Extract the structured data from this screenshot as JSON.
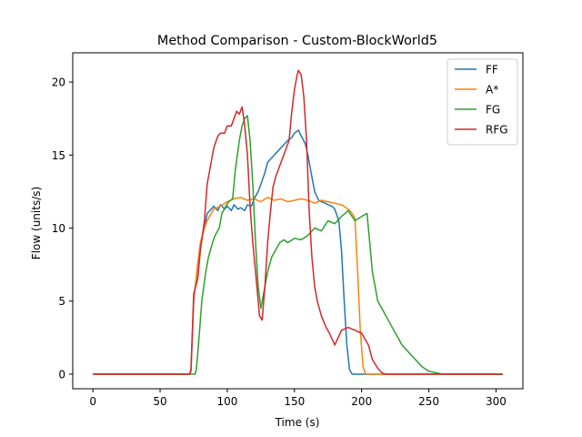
{
  "chart_data": {
    "type": "line",
    "title": "Method Comparison - Custom-BlockWorld5",
    "xlabel": "Time (s)",
    "ylabel": "Flow (units/s)",
    "xlim": [
      -15,
      320
    ],
    "ylim": [
      -1,
      22
    ],
    "xticks": [
      0,
      50,
      100,
      150,
      200,
      250,
      300
    ],
    "yticks": [
      0,
      5,
      10,
      15,
      20
    ],
    "grid": false,
    "legend_position": "top-right",
    "series": [
      {
        "name": "FF",
        "color": "#1f77b4",
        "x": [
          0,
          72,
          73,
          75,
          78,
          80,
          83,
          85,
          88,
          90,
          93,
          95,
          98,
          100,
          103,
          105,
          108,
          110,
          113,
          115,
          118,
          120,
          123,
          125,
          128,
          130,
          133,
          135,
          138,
          140,
          143,
          145,
          148,
          150,
          153,
          155,
          158,
          160,
          163,
          165,
          168,
          170,
          173,
          175,
          178,
          180,
          183,
          185,
          187,
          189,
          191,
          193,
          200,
          250,
          305
        ],
        "y": [
          0,
          0,
          0.2,
          5,
          7.5,
          9,
          10,
          11,
          11.3,
          11.5,
          11.2,
          11.6,
          11.3,
          11.5,
          11.2,
          11.6,
          11.3,
          11.4,
          11.2,
          11.6,
          11.5,
          12,
          12.5,
          13,
          13.8,
          14.5,
          14.8,
          15,
          15.3,
          15.5,
          15.8,
          16,
          16.2,
          16.5,
          16.7,
          16.3,
          15.8,
          15,
          13.5,
          12.5,
          11.9,
          11.8,
          11.7,
          11.6,
          11.5,
          11.3,
          10.5,
          8.5,
          5,
          2,
          0.3,
          0,
          0,
          0,
          0
        ]
      },
      {
        "name": "A*",
        "color": "#ff7f0e",
        "x": [
          0,
          72,
          73,
          75,
          78,
          80,
          83,
          85,
          88,
          90,
          95,
          100,
          105,
          110,
          115,
          120,
          125,
          130,
          135,
          140,
          145,
          150,
          155,
          160,
          165,
          170,
          175,
          180,
          185,
          190,
          193,
          195,
          197,
          199,
          201,
          203,
          210,
          250,
          305
        ],
        "y": [
          0,
          0,
          0.3,
          5,
          7.5,
          9,
          10,
          10.5,
          11,
          11.3,
          11.5,
          11.8,
          12,
          12.1,
          11.9,
          12,
          11.8,
          12.1,
          11.9,
          12,
          11.8,
          11.9,
          12,
          11.9,
          11.7,
          11.9,
          11.8,
          11.7,
          11.6,
          11.3,
          11,
          10.7,
          7,
          3,
          0.5,
          0,
          0,
          0,
          0
        ]
      },
      {
        "name": "FG",
        "color": "#2ca02c",
        "x": [
          0,
          76,
          77,
          79,
          81,
          84,
          86,
          89,
          91,
          94,
          96,
          99,
          101,
          104,
          106,
          109,
          111,
          113,
          115,
          117,
          119,
          121,
          123,
          125,
          127,
          130,
          133,
          136,
          139,
          142,
          145,
          150,
          155,
          160,
          165,
          170,
          175,
          180,
          185,
          190,
          195,
          200,
          204,
          206,
          208,
          210,
          212,
          215,
          218,
          221,
          224,
          227,
          230,
          235,
          240,
          245,
          250,
          255,
          260,
          305
        ],
        "y": [
          0,
          0,
          0.3,
          2.5,
          5,
          7,
          8,
          9,
          9.5,
          10,
          11,
          11.5,
          11.8,
          12,
          14,
          16,
          17,
          17.5,
          17.7,
          16,
          13,
          9,
          6,
          4.5,
          5.5,
          7,
          8,
          8.5,
          9,
          9.2,
          9,
          9.3,
          9.2,
          9.5,
          10,
          9.8,
          10.5,
          10.3,
          10.8,
          11.2,
          10.5,
          10.8,
          11,
          9,
          7,
          6,
          5,
          4.5,
          4,
          3.5,
          3,
          2.5,
          2,
          1.5,
          1,
          0.5,
          0.2,
          0.1,
          0,
          0
        ]
      },
      {
        "name": "RFG",
        "color": "#d62728",
        "x": [
          0,
          72,
          73,
          75,
          78,
          80,
          83,
          85,
          88,
          90,
          93,
          95,
          98,
          100,
          103,
          105,
          107,
          109,
          111,
          113,
          115,
          117,
          119,
          121,
          123,
          124,
          126,
          128,
          130,
          132,
          134,
          136,
          138,
          140,
          142,
          144,
          146,
          148,
          150,
          152,
          153,
          155,
          157,
          159,
          161,
          163,
          165,
          167,
          170,
          173,
          176,
          180,
          185,
          190,
          195,
          200,
          205,
          208,
          212,
          215,
          218,
          225,
          305
        ],
        "y": [
          0,
          0,
          0.3,
          5.5,
          6.5,
          8.5,
          10.5,
          13,
          14.5,
          15.5,
          16.3,
          16.5,
          16.5,
          17,
          17,
          17.5,
          18,
          17.8,
          18.3,
          17,
          15,
          11.5,
          9,
          7,
          5,
          4,
          3.7,
          6,
          9,
          11,
          12.8,
          13.5,
          14,
          14.5,
          15,
          15.5,
          16,
          18,
          19.5,
          20.5,
          20.8,
          20.5,
          19,
          16,
          11,
          8,
          6,
          5,
          4,
          3.3,
          2.8,
          2,
          3,
          3.2,
          3,
          2.8,
          2,
          1,
          0.4,
          0.1,
          0,
          0,
          0
        ]
      }
    ]
  }
}
